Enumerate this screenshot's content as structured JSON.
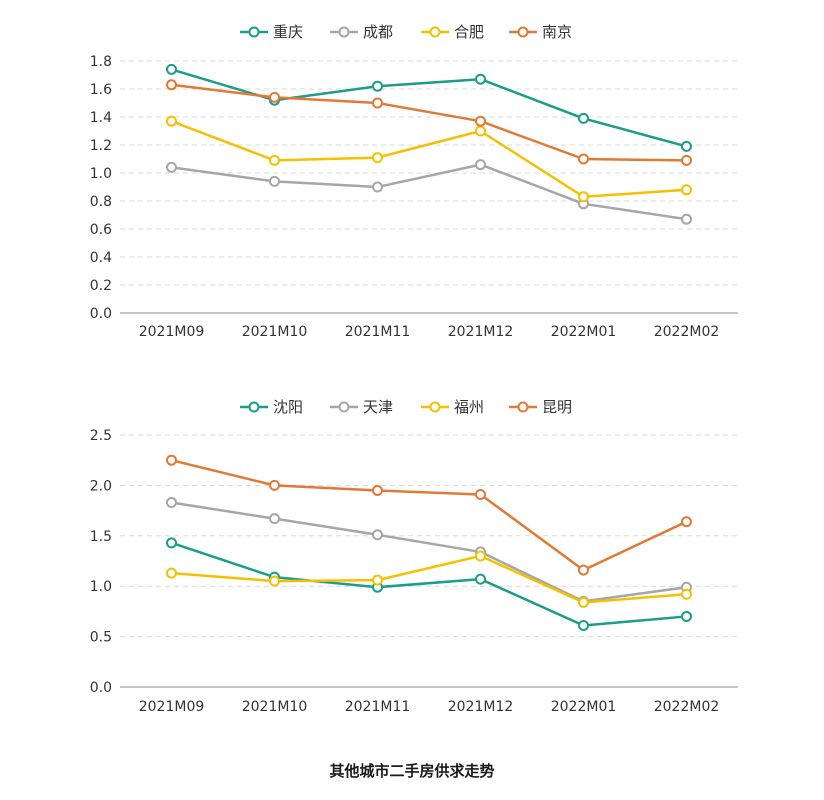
{
  "caption": "其他城市二手房供求走势",
  "chart_data": [
    {
      "type": "line",
      "categories": [
        "2021M09",
        "2021M10",
        "2021M11",
        "2021M12",
        "2022M01",
        "2022M02"
      ],
      "ylim": [
        0,
        1.8
      ],
      "yticks": [
        0,
        0.2,
        0.4,
        0.6,
        0.8,
        1.0,
        1.2,
        1.4,
        1.6,
        1.8
      ],
      "grid": true,
      "legend_position": "top-center",
      "series": [
        {
          "name": "重庆",
          "color": "#1a9e8a",
          "values": [
            1.74,
            1.52,
            1.62,
            1.67,
            1.39,
            1.19
          ]
        },
        {
          "name": "成都",
          "color": "#a6a6a6",
          "values": [
            1.04,
            0.94,
            0.9,
            1.06,
            0.78,
            0.67
          ]
        },
        {
          "name": "合肥",
          "color": "#f5c000",
          "values": [
            1.37,
            1.09,
            1.11,
            1.3,
            0.83,
            0.88
          ]
        },
        {
          "name": "南京",
          "color": "#e07a35",
          "values": [
            1.63,
            1.54,
            1.5,
            1.37,
            1.1,
            1.09
          ]
        }
      ]
    },
    {
      "type": "line",
      "categories": [
        "2021M09",
        "2021M10",
        "2021M11",
        "2021M12",
        "2022M01",
        "2022M02"
      ],
      "ylim": [
        0,
        2.5
      ],
      "yticks": [
        0,
        0.5,
        1.0,
        1.5,
        2.0,
        2.5
      ],
      "grid": true,
      "legend_position": "top-center",
      "series": [
        {
          "name": "沈阳",
          "color": "#1a9e8a",
          "values": [
            1.43,
            1.09,
            0.99,
            1.07,
            0.61,
            0.7
          ]
        },
        {
          "name": "天津",
          "color": "#a6a6a6",
          "values": [
            1.83,
            1.67,
            1.51,
            1.34,
            0.85,
            0.99
          ]
        },
        {
          "name": "福州",
          "color": "#f5c000",
          "values": [
            1.13,
            1.05,
            1.06,
            1.3,
            0.84,
            0.92
          ]
        },
        {
          "name": "昆明",
          "color": "#e07a35",
          "values": [
            2.25,
            2.0,
            1.95,
            1.91,
            1.16,
            1.64
          ]
        }
      ]
    }
  ]
}
